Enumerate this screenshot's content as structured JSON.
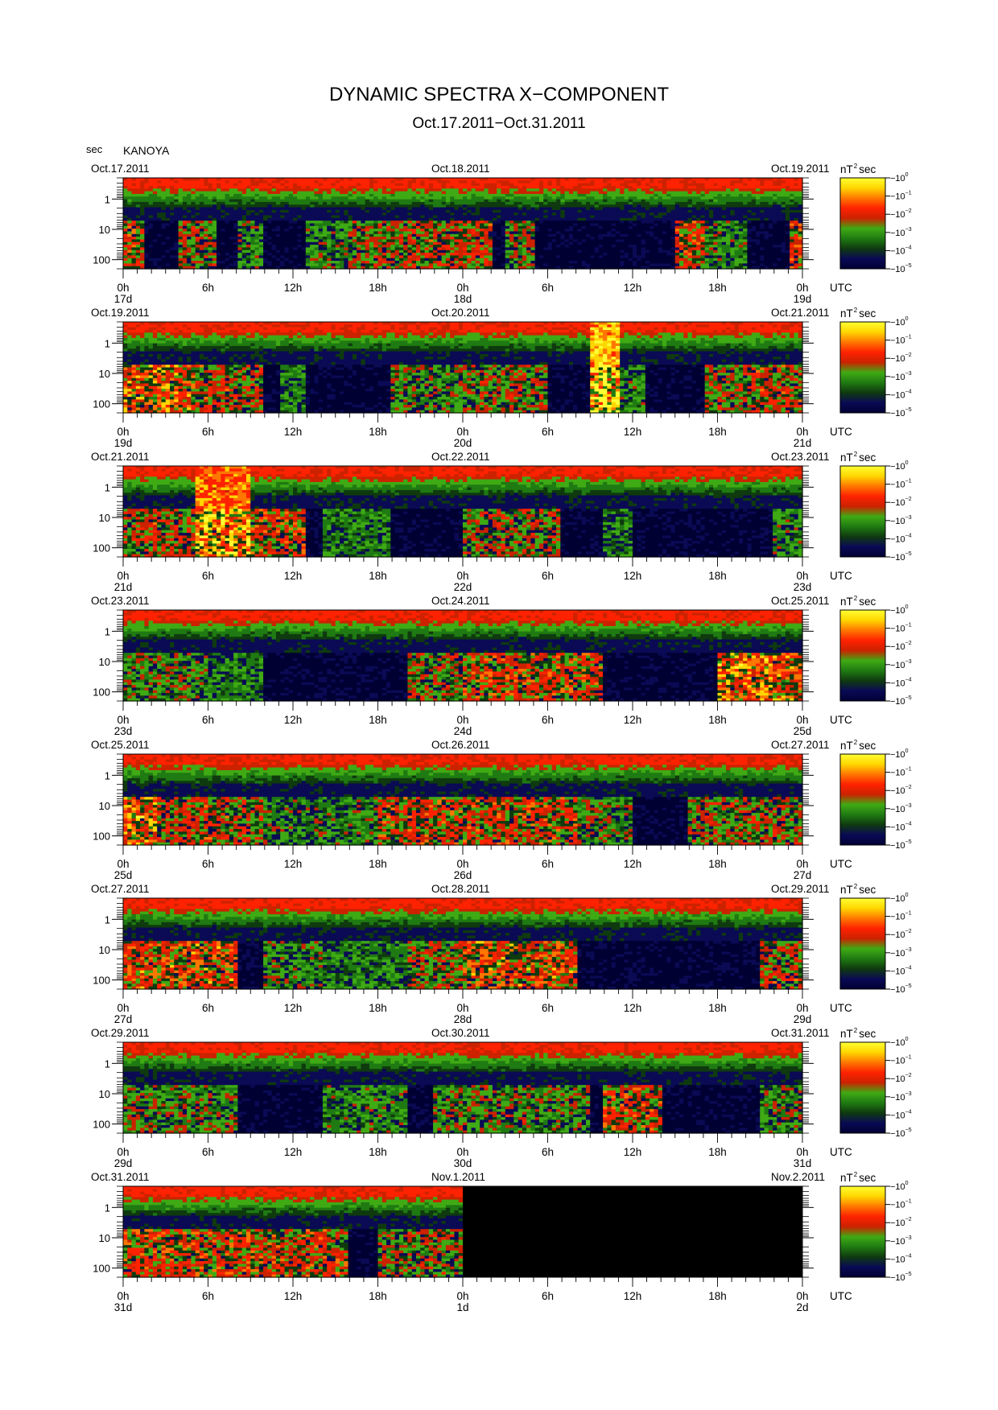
{
  "title": "DYNAMIC SPECTRA X−COMPONENT",
  "subtitle": "Oct.17.2011−Oct.31.2011",
  "y_unit": "sec",
  "station": "KANOYA",
  "colorbar_unit": "nT",
  "colorbar_unit_exp": "2",
  "colorbar_unit_suffix": "sec",
  "utc_label": "UTC",
  "colormap": [
    "#000033",
    "#0a0a55",
    "#0f3a0f",
    "#1f7a12",
    "#3faa14",
    "#cc2200",
    "#ff2200",
    "#ff7700",
    "#ffd600",
    "#ffff33"
  ],
  "colorbar_ticks": [
    "−10",
    "−10",
    "−10",
    "−10",
    "−10",
    "−10"
  ],
  "colorbar_exps": [
    "0",
    "−1",
    "−2",
    "−3",
    "−4",
    "−5"
  ],
  "y_ticks": [
    "1",
    "10",
    "100"
  ],
  "x_hour_ticks": [
    "0h",
    "6h",
    "12h",
    "18h",
    "0h",
    "6h",
    "12h",
    "18h",
    "0h"
  ],
  "chart_data": {
    "type": "heatmap",
    "title": "DYNAMIC SPECTRA X−COMPONENT",
    "subtitle": "Oct.17.2011−Oct.31.2011",
    "ylabel": "sec",
    "y_scale": "log",
    "y_range_sec": [
      0.2,
      200
    ],
    "x_range_hours_per_panel": [
      0,
      48
    ],
    "color_scale": "log",
    "color_range": [
      1e-05,
      1
    ],
    "colorbar_label": "nT^2 sec",
    "panels": [
      {
        "date_left": "Oct.17.2011",
        "date_center": "Oct.18.2011",
        "date_right": "Oct.19.2011",
        "day_left": "17d",
        "day_center": "18d",
        "day_right": "19d",
        "active_hours": [
          [
            0,
            1.5,
            0.6
          ],
          [
            4,
            6.5,
            0.5
          ],
          [
            8,
            10,
            0.4
          ],
          [
            13,
            16,
            0.4
          ],
          [
            16,
            20,
            0.5
          ],
          [
            20,
            26,
            0.55
          ],
          [
            27,
            29,
            0.45
          ],
          [
            39,
            41,
            0.6
          ],
          [
            41,
            44,
            0.4
          ],
          [
            47,
            48,
            0.6
          ]
        ],
        "data_until_hour": 48
      },
      {
        "date_left": "Oct.19.2011",
        "date_center": "Oct.20.2011",
        "date_right": "Oct.21.2011",
        "day_left": "19d",
        "day_center": "20d",
        "day_right": "21d",
        "active_hours": [
          [
            0,
            5,
            0.7
          ],
          [
            5,
            10,
            0.55
          ],
          [
            11,
            13,
            0.35
          ],
          [
            19,
            24,
            0.45
          ],
          [
            24,
            30,
            0.5
          ],
          [
            33,
            35,
            0.95
          ],
          [
            35,
            37,
            0.4
          ],
          [
            41,
            44,
            0.5
          ],
          [
            44,
            48,
            0.55
          ]
        ],
        "data_until_hour": 48
      },
      {
        "date_left": "Oct.21.2011",
        "date_center": "Oct.22.2011",
        "date_right": "Oct.23.2011",
        "day_left": "21d",
        "day_center": "22d",
        "day_right": "23d",
        "active_hours": [
          [
            0,
            5,
            0.55
          ],
          [
            5,
            9,
            0.85
          ],
          [
            9,
            13,
            0.6
          ],
          [
            14,
            19,
            0.35
          ],
          [
            24,
            31,
            0.5
          ],
          [
            34,
            36,
            0.35
          ],
          [
            46,
            48,
            0.4
          ]
        ],
        "data_until_hour": 48
      },
      {
        "date_left": "Oct.23.2011",
        "date_center": "Oct.24.2011",
        "date_right": "Oct.25.2011",
        "day_left": "23d",
        "day_center": "24d",
        "day_right": "25d",
        "active_hours": [
          [
            0,
            6,
            0.45
          ],
          [
            6,
            10,
            0.35
          ],
          [
            20,
            24,
            0.5
          ],
          [
            24,
            34,
            0.6
          ],
          [
            42,
            46,
            0.75
          ],
          [
            46,
            48,
            0.7
          ]
        ],
        "data_until_hour": 48
      },
      {
        "date_left": "Oct.25.2011",
        "date_center": "Oct.26.2011",
        "date_right": "Oct.27.2011",
        "day_left": "25d",
        "day_center": "26d",
        "day_right": "27d",
        "active_hours": [
          [
            0,
            2.5,
            0.75
          ],
          [
            2.5,
            10,
            0.55
          ],
          [
            10,
            18,
            0.4
          ],
          [
            18,
            32,
            0.6
          ],
          [
            32,
            36,
            0.45
          ],
          [
            40,
            48,
            0.5
          ]
        ],
        "data_until_hour": 48
      },
      {
        "date_left": "Oct.27.2011",
        "date_center": "Oct.28.2011",
        "date_right": "Oct.29.2011",
        "day_left": "27d",
        "day_center": "28d",
        "day_right": "29d",
        "active_hours": [
          [
            0,
            8,
            0.65
          ],
          [
            10,
            14,
            0.4
          ],
          [
            14,
            20,
            0.35
          ],
          [
            20,
            24,
            0.5
          ],
          [
            24,
            32,
            0.65
          ],
          [
            45,
            48,
            0.55
          ]
        ],
        "data_until_hour": 48
      },
      {
        "date_left": "Oct.29.2011",
        "date_center": "Oct.30.2011",
        "date_right": "Oct.31.2011",
        "day_left": "29d",
        "day_center": "30d",
        "day_right": "31d",
        "active_hours": [
          [
            0,
            8,
            0.45
          ],
          [
            14,
            20,
            0.4
          ],
          [
            22,
            26,
            0.45
          ],
          [
            26,
            33,
            0.45
          ],
          [
            34,
            38,
            0.6
          ],
          [
            45,
            48,
            0.45
          ]
        ],
        "data_until_hour": 48
      },
      {
        "date_left": "Oct.31.2011",
        "date_center": "Nov.1.2011",
        "date_right": "Nov.2.2011",
        "day_left": "31d",
        "day_center": "1d",
        "day_right": "2d",
        "active_hours": [
          [
            0,
            12,
            0.6
          ],
          [
            12,
            16,
            0.6
          ],
          [
            18,
            24,
            0.5
          ]
        ],
        "data_until_hour": 24
      }
    ]
  }
}
